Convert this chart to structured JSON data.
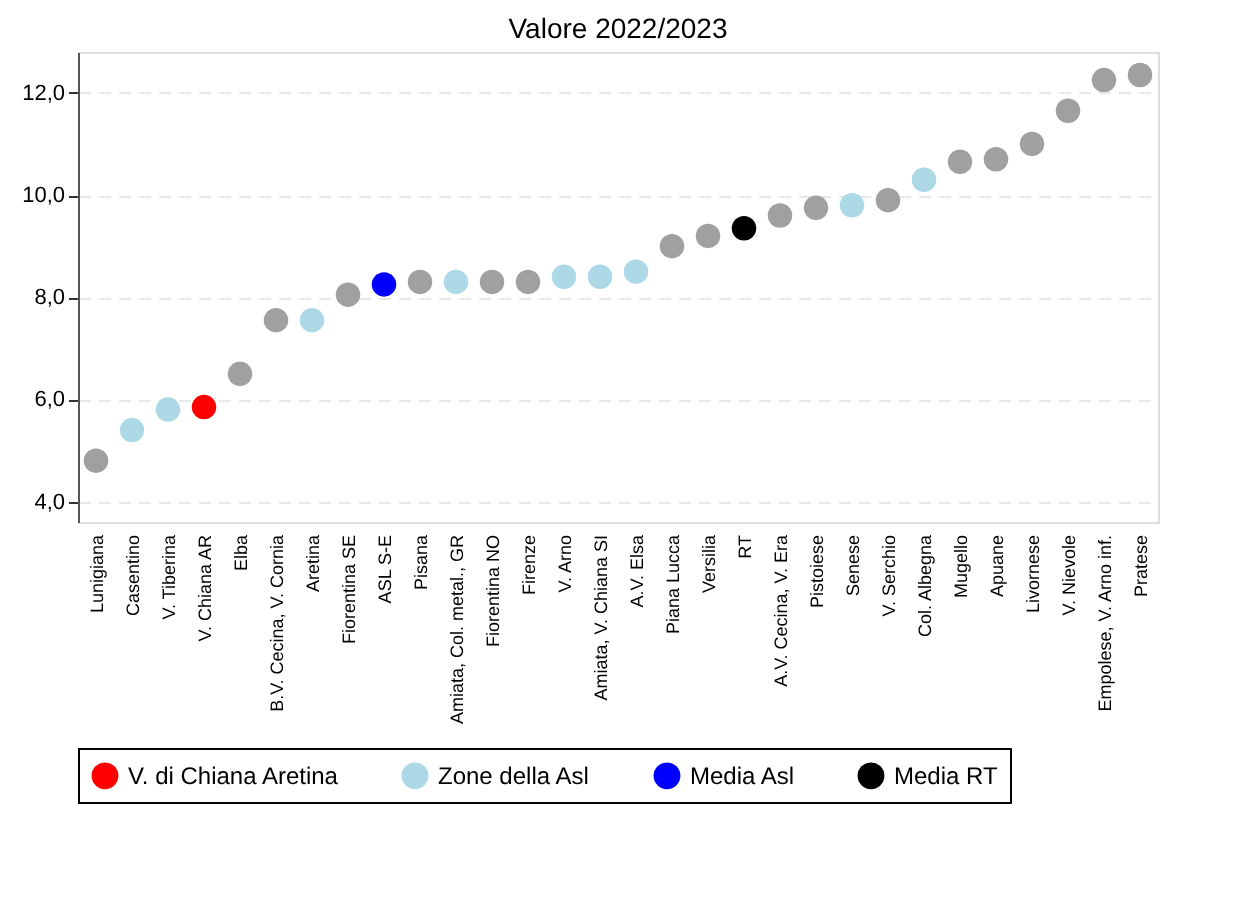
{
  "chart_data": {
    "type": "scatter",
    "title": "Valore 2022/2023",
    "categories": [
      "Lunigiana",
      "Casentino",
      "V. Tiberina",
      "V. Chiana AR",
      "Elba",
      "B.V. Cecina, V. Cornia",
      "Aretina",
      "Fiorentina SE",
      "ASL S-E",
      "Pisana",
      "Amiata, Col. metal., GR",
      "Fiorentina NO",
      "Firenze",
      "V. Arno",
      "Amiata, V. Chiana SI",
      "A.V. Elsa",
      "Piana Lucca",
      "Versilia",
      "RT",
      "A.V. Cecina, V. Era",
      "Pistoiese",
      "Senese",
      "V. Serchio",
      "Col. Albegna",
      "Mugello",
      "Apuane",
      "Livornese",
      "V. Nievole",
      "Empolese, V. Arno inf.",
      "Pratese"
    ],
    "series": [
      {
        "color": "#a0a0a0",
        "values": [
          4.8,
          null,
          null,
          null,
          6.5,
          7.55,
          null,
          8.05,
          null,
          8.3,
          null,
          8.3,
          8.3,
          null,
          null,
          null,
          9.0,
          9.2,
          null,
          9.6,
          9.75,
          null,
          9.9,
          null,
          10.65,
          10.7,
          11.0,
          11.65,
          12.25,
          12.35
        ]
      },
      {
        "name": "V. di Chiana Aretina",
        "color": "#ff0000",
        "values": [
          null,
          null,
          null,
          5.85,
          null,
          null,
          null,
          null,
          null,
          null,
          null,
          null,
          null,
          null,
          null,
          null,
          null,
          null,
          null,
          null,
          null,
          null,
          null,
          null,
          null,
          null,
          null,
          null,
          null,
          null
        ]
      },
      {
        "name": "Zone della Asl",
        "color": "#add8e6",
        "values": [
          null,
          5.4,
          5.8,
          null,
          null,
          null,
          7.55,
          null,
          null,
          null,
          8.3,
          null,
          null,
          8.4,
          8.4,
          8.5,
          null,
          null,
          null,
          null,
          null,
          9.8,
          null,
          10.3,
          null,
          null,
          null,
          null,
          null,
          null
        ]
      },
      {
        "name": "Media Asl",
        "color": "#0000ff",
        "values": [
          null,
          null,
          null,
          null,
          null,
          null,
          null,
          null,
          8.25,
          null,
          null,
          null,
          null,
          null,
          null,
          null,
          null,
          null,
          null,
          null,
          null,
          null,
          null,
          null,
          null,
          null,
          null,
          null,
          null,
          null
        ]
      },
      {
        "name": "Media RT",
        "color": "#000000",
        "values": [
          null,
          null,
          null,
          null,
          null,
          null,
          null,
          null,
          null,
          null,
          null,
          null,
          null,
          null,
          null,
          null,
          null,
          null,
          9.35,
          null,
          null,
          null,
          null,
          null,
          null,
          null,
          null,
          null,
          null,
          null
        ]
      }
    ],
    "ylim": [
      3.6,
      12.8
    ],
    "yticks": [
      {
        "value": 4,
        "label": "4,0"
      },
      {
        "value": 6,
        "label": "6,0"
      },
      {
        "value": 8,
        "label": "8,0"
      },
      {
        "value": 10,
        "label": "10,0"
      },
      {
        "value": 12,
        "label": "12,0"
      }
    ],
    "grid": "y",
    "legend": "bottom",
    "marker": "circle"
  }
}
